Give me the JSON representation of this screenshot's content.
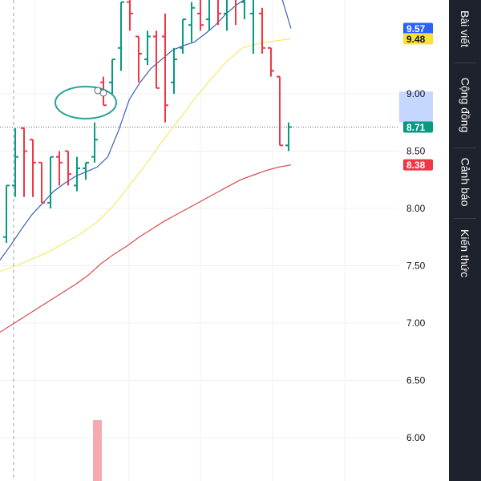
{
  "chart_data": {
    "type": "ohlc",
    "y_range": [
      5.6,
      9.8
    ],
    "y_ticks": [
      "9.00",
      "8.50",
      "8.00",
      "7.50",
      "7.00",
      "6.50",
      "6.00"
    ],
    "grid": true,
    "bar_up_color": "#089981",
    "bar_down_color": "#f23645",
    "bars": [
      {
        "o": 7.75,
        "h": 8.2,
        "l": 7.7,
        "c": 8.2
      },
      {
        "o": 8.2,
        "h": 8.7,
        "l": 8.1,
        "c": 8.45
      },
      {
        "o": 8.7,
        "h": 8.7,
        "l": 8.1,
        "c": 8.5
      },
      {
        "o": 8.6,
        "h": 8.6,
        "l": 8.1,
        "c": 8.4
      },
      {
        "o": 8.4,
        "h": 8.4,
        "l": 8.05,
        "c": 8.05
      },
      {
        "o": 8.05,
        "h": 8.45,
        "l": 8.0,
        "c": 8.45
      },
      {
        "o": 8.45,
        "h": 8.5,
        "l": 8.2,
        "c": 8.4
      },
      {
        "o": 8.5,
        "h": 8.5,
        "l": 8.2,
        "c": 8.3
      },
      {
        "o": 8.2,
        "h": 8.45,
        "l": 8.15,
        "c": 8.35
      },
      {
        "o": 8.35,
        "h": 8.4,
        "l": 8.25,
        "c": 8.4
      },
      {
        "o": 8.45,
        "h": 8.75,
        "l": 8.4,
        "c": 8.6
      },
      {
        "o": 9.1,
        "h": 9.15,
        "l": 8.9,
        "c": 8.9
      },
      {
        "o": 9.1,
        "h": 9.3,
        "l": 9.0,
        "c": 9.3
      },
      {
        "o": 9.4,
        "h": 9.8,
        "l": 9.2,
        "c": 9.8
      },
      {
        "o": 9.8,
        "h": 9.9,
        "l": 9.55,
        "c": 9.7
      },
      {
        "o": 9.5,
        "h": 9.5,
        "l": 9.1,
        "c": 9.35
      },
      {
        "o": 9.3,
        "h": 9.55,
        "l": 9.25,
        "c": 9.5
      },
      {
        "o": 9.5,
        "h": 9.55,
        "l": 9.05,
        "c": 9.05
      },
      {
        "o": 9.5,
        "h": 9.7,
        "l": 8.75,
        "c": 8.9
      },
      {
        "o": 9.1,
        "h": 9.4,
        "l": 9.0,
        "c": 9.3
      },
      {
        "o": 9.4,
        "h": 9.65,
        "l": 9.35,
        "c": 9.65
      },
      {
        "o": 9.6,
        "h": 9.8,
        "l": 9.45,
        "c": 9.75
      },
      {
        "o": 9.7,
        "h": 9.9,
        "l": 9.55,
        "c": 9.6
      },
      {
        "o": 9.65,
        "h": 9.9,
        "l": 9.55,
        "c": 9.85
      },
      {
        "o": 9.85,
        "h": 9.9,
        "l": 9.6,
        "c": 9.7
      },
      {
        "o": 9.7,
        "h": 9.9,
        "l": 9.55,
        "c": 9.85
      },
      {
        "o": 9.9,
        "h": 9.9,
        "l": 9.6,
        "c": 9.85
      },
      {
        "o": 9.8,
        "h": 9.9,
        "l": 9.65,
        "c": 9.85
      },
      {
        "o": 9.7,
        "h": 9.9,
        "l": 9.35,
        "c": 9.85
      },
      {
        "o": 9.7,
        "h": 9.75,
        "l": 9.35,
        "c": 9.4
      },
      {
        "o": 9.4,
        "h": 9.4,
        "l": 9.15,
        "c": 9.2
      },
      {
        "o": 9.15,
        "h": 9.15,
        "l": 8.55,
        "c": 8.55
      },
      {
        "o": 8.55,
        "h": 8.75,
        "l": 8.5,
        "c": 8.71
      }
    ],
    "ma_fast": [
      7.55,
      7.68,
      7.82,
      7.95,
      8.05,
      8.15,
      8.22,
      8.28,
      8.32,
      8.36,
      8.45,
      8.68,
      8.95,
      9.1,
      9.22,
      9.3,
      9.38,
      9.42,
      9.45,
      9.52,
      9.6,
      9.7,
      9.78,
      9.84,
      9.88,
      9.9,
      9.88,
      9.57
    ],
    "ma_mid": [
      7.45,
      7.5,
      7.56,
      7.62,
      7.7,
      7.78,
      7.88,
      8.02,
      8.2,
      8.38,
      8.58,
      8.76,
      8.95,
      9.12,
      9.28,
      9.4,
      9.44,
      9.46,
      9.48
    ],
    "ma_slow": [
      6.92,
      6.99,
      7.06,
      7.13,
      7.2,
      7.27,
      7.34,
      7.42,
      7.52,
      7.6,
      7.67,
      7.75,
      7.82,
      7.89,
      7.95,
      8.01,
      8.07,
      8.13,
      8.19,
      8.25,
      8.29,
      8.33,
      8.36,
      8.38
    ],
    "ma_fast_color": "#3c5db5",
    "ma_mid_color": "#f5e86c",
    "ma_slow_color": "#d84a50",
    "price_labels": [
      {
        "value": 9.57,
        "text": "9.57",
        "bg": "#2962ff",
        "fg": "#ffffff"
      },
      {
        "value": 9.48,
        "text": "9.48",
        "bg": "#f7e330",
        "fg": "#131722"
      },
      {
        "value": 8.71,
        "text": "8.71",
        "bg": "#089981",
        "fg": "#ffffff"
      },
      {
        "value": 8.38,
        "text": "8.38",
        "bg": "#f23645",
        "fg": "#ffffff"
      }
    ],
    "current_price": 8.71,
    "highlight_range": [
      8.75,
      9.02
    ],
    "annotation_circle_color": "#2aa198"
  },
  "sidebar": {
    "tabs": [
      {
        "label": "Bài viết"
      },
      {
        "label": "Cộng đồng"
      },
      {
        "label": "Cảnh báo"
      },
      {
        "label": "Kiến thức"
      }
    ]
  }
}
